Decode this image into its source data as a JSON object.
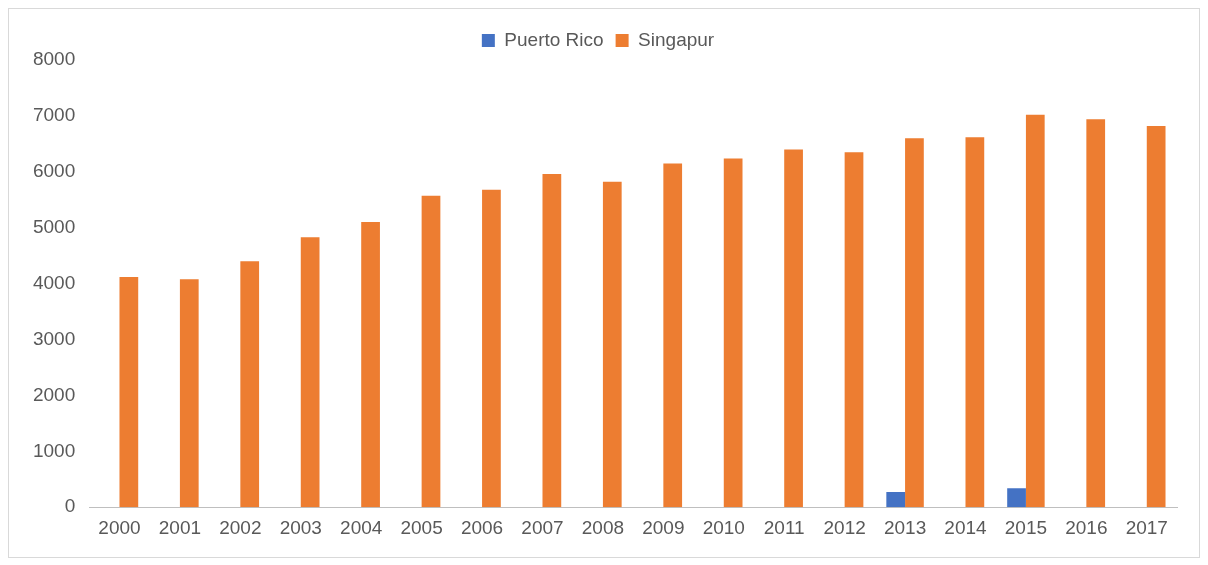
{
  "chart_data": {
    "type": "bar",
    "categories": [
      "2000",
      "2001",
      "2002",
      "2003",
      "2004",
      "2005",
      "2006",
      "2007",
      "2008",
      "2009",
      "2010",
      "2011",
      "2012",
      "2013",
      "2014",
      "2015",
      "2016",
      "2017"
    ],
    "series": [
      {
        "name": "Puerto Rico",
        "color": "#4472c4",
        "values": [
          null,
          null,
          null,
          null,
          null,
          null,
          null,
          null,
          null,
          null,
          null,
          null,
          null,
          270,
          null,
          340,
          null,
          null
        ]
      },
      {
        "name": "Singapur",
        "color": "#ed7d31",
        "values": [
          4120,
          4080,
          4400,
          4830,
          5100,
          5570,
          5680,
          5960,
          5820,
          6150,
          6240,
          6400,
          6350,
          6600,
          6620,
          7020,
          6940,
          6820
        ]
      }
    ],
    "ylim": [
      0,
      8000
    ],
    "yticks": [
      0,
      1000,
      2000,
      3000,
      4000,
      5000,
      6000,
      7000,
      8000
    ],
    "grid": false,
    "legend": "top"
  }
}
